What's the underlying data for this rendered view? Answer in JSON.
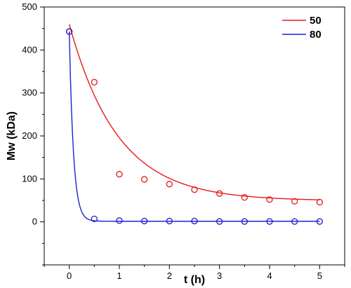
{
  "chart_data": {
    "type": "scatter",
    "xlabel": "t (h)",
    "ylabel": "Mw (kDa)",
    "xlim": [
      -0.5,
      5.5
    ],
    "ylim": [
      -100,
      500
    ],
    "xticks": [
      0,
      1,
      2,
      3,
      4,
      5
    ],
    "yticks": [
      0,
      100,
      200,
      300,
      400,
      500
    ],
    "grid": false,
    "legend_position": "top-right",
    "series": [
      {
        "name": "50",
        "color": "#e31a1c",
        "points": {
          "x": [
            0,
            0.5,
            1,
            1.5,
            2,
            2.5,
            3,
            3.5,
            4,
            4.5,
            5
          ],
          "y": [
            443,
            325,
            111,
            99,
            88,
            75,
            66,
            57,
            52,
            48,
            46
          ]
        },
        "fit": {
          "model": "exponential_decay",
          "y0": 49,
          "A": 411,
          "k": 1.03,
          "x_range": [
            0,
            5
          ]
        }
      },
      {
        "name": "80",
        "color": "#1f1fd6",
        "points": {
          "x": [
            0,
            0.5,
            1,
            1.5,
            2,
            2.5,
            3,
            3.5,
            4,
            4.5,
            5
          ],
          "y": [
            443,
            7,
            3,
            2,
            2,
            2,
            1,
            1,
            1,
            1,
            1
          ]
        },
        "fit": {
          "model": "exponential_decay",
          "y0": 1.5,
          "A": 441.5,
          "k": 12,
          "x_range": [
            0,
            5
          ]
        }
      }
    ]
  }
}
